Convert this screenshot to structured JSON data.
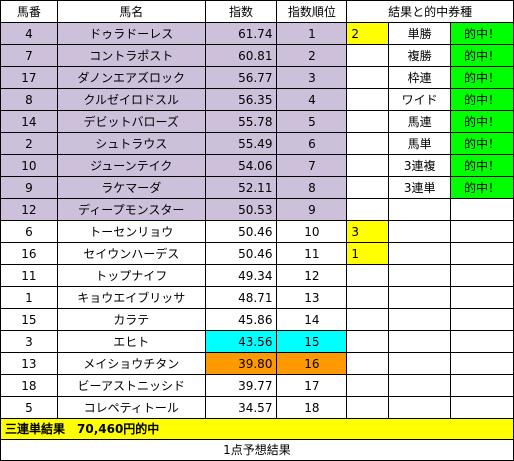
{
  "headers": {
    "no": "馬番",
    "name": "馬名",
    "index": "指数",
    "rank": "指数順位",
    "result": "結果と的中券種"
  },
  "colors": {
    "lavender": "#ccc0da",
    "yellow": "#ffff00",
    "green": "#00ff00",
    "cyan": "#00ffff",
    "orange": "#ff9900"
  },
  "rows": [
    {
      "no": "4",
      "name": "ドゥラドーレス",
      "index": "61.74",
      "rank": "1",
      "res": "2",
      "bet": "単勝",
      "hit": "的中！"
    },
    {
      "no": "7",
      "name": "コントラポスト",
      "index": "60.81",
      "rank": "2",
      "res": "",
      "bet": "複勝",
      "hit": "的中！"
    },
    {
      "no": "17",
      "name": "ダノンエアズロック",
      "index": "56.77",
      "rank": "3",
      "res": "",
      "bet": "枠連",
      "hit": "的中！"
    },
    {
      "no": "8",
      "name": "クルゼイロドスル",
      "index": "56.35",
      "rank": "4",
      "res": "",
      "bet": "ワイド",
      "hit": "的中！"
    },
    {
      "no": "14",
      "name": "デビットバローズ",
      "index": "55.78",
      "rank": "5",
      "res": "",
      "bet": "馬連",
      "hit": "的中！"
    },
    {
      "no": "2",
      "name": "シュトラウス",
      "index": "55.49",
      "rank": "6",
      "res": "",
      "bet": "馬単",
      "hit": "的中！"
    },
    {
      "no": "10",
      "name": "ジューンテイク",
      "index": "54.06",
      "rank": "7",
      "res": "",
      "bet": "3連複",
      "hit": "的中！"
    },
    {
      "no": "9",
      "name": "ラケマーダ",
      "index": "52.11",
      "rank": "8",
      "res": "",
      "bet": "3連単",
      "hit": "的中！"
    },
    {
      "no": "12",
      "name": "ディープモンスター",
      "index": "50.53",
      "rank": "9",
      "res": "",
      "bet": "",
      "hit": ""
    },
    {
      "no": "6",
      "name": "トーセンリョウ",
      "index": "50.46",
      "rank": "10",
      "res": "3",
      "bet": "",
      "hit": ""
    },
    {
      "no": "16",
      "name": "セイウンハーデス",
      "index": "50.46",
      "rank": "11",
      "res": "1",
      "bet": "",
      "hit": ""
    },
    {
      "no": "11",
      "name": "トップナイフ",
      "index": "49.34",
      "rank": "12",
      "res": "",
      "bet": "",
      "hit": ""
    },
    {
      "no": "1",
      "name": "キョウエイブリッサ",
      "index": "48.71",
      "rank": "13",
      "res": "",
      "bet": "",
      "hit": ""
    },
    {
      "no": "15",
      "name": "カラテ",
      "index": "45.86",
      "rank": "14",
      "res": "",
      "bet": "",
      "hit": ""
    },
    {
      "no": "3",
      "name": "エヒト",
      "index": "43.56",
      "rank": "15",
      "res": "",
      "bet": "",
      "hit": ""
    },
    {
      "no": "13",
      "name": "メイショウチタン",
      "index": "39.80",
      "rank": "16",
      "res": "",
      "bet": "",
      "hit": ""
    },
    {
      "no": "18",
      "name": "ビーアストニッシド",
      "index": "39.77",
      "rank": "17",
      "res": "",
      "bet": "",
      "hit": ""
    },
    {
      "no": "5",
      "name": "コレペティトール",
      "index": "34.57",
      "rank": "18",
      "res": "",
      "bet": "",
      "hit": ""
    }
  ],
  "summary": "三連単結果　70,460円的中",
  "footer": "1点予想結果"
}
